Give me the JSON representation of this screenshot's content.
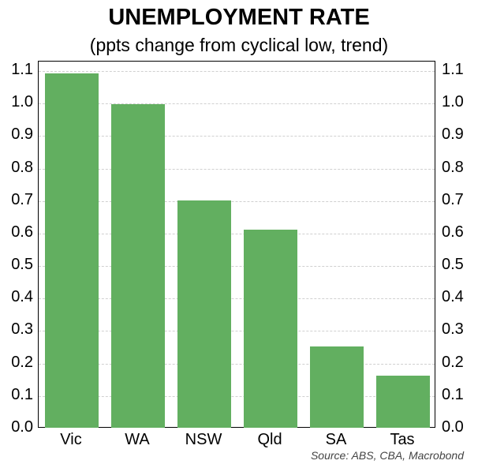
{
  "chart_data": {
    "type": "bar",
    "title": "UNEMPLOYMENT RATE",
    "subtitle": "(ppts change from cyclical low, trend)",
    "categories": [
      "Vic",
      "WA",
      "NSW",
      "Qld",
      "SA",
      "Tas"
    ],
    "values": [
      1.09,
      0.995,
      0.7,
      0.61,
      0.25,
      0.16
    ],
    "xlabel": "",
    "ylabel": "",
    "ylim": [
      0.0,
      1.1
    ],
    "yticks": [
      "0.0",
      "0.1",
      "0.2",
      "0.3",
      "0.4",
      "0.5",
      "0.6",
      "0.7",
      "0.8",
      "0.9",
      "1.0",
      "1.1"
    ],
    "grid": true,
    "bar_color": "#62af60",
    "source": "Source: ABS, CBA, Macrobond"
  }
}
